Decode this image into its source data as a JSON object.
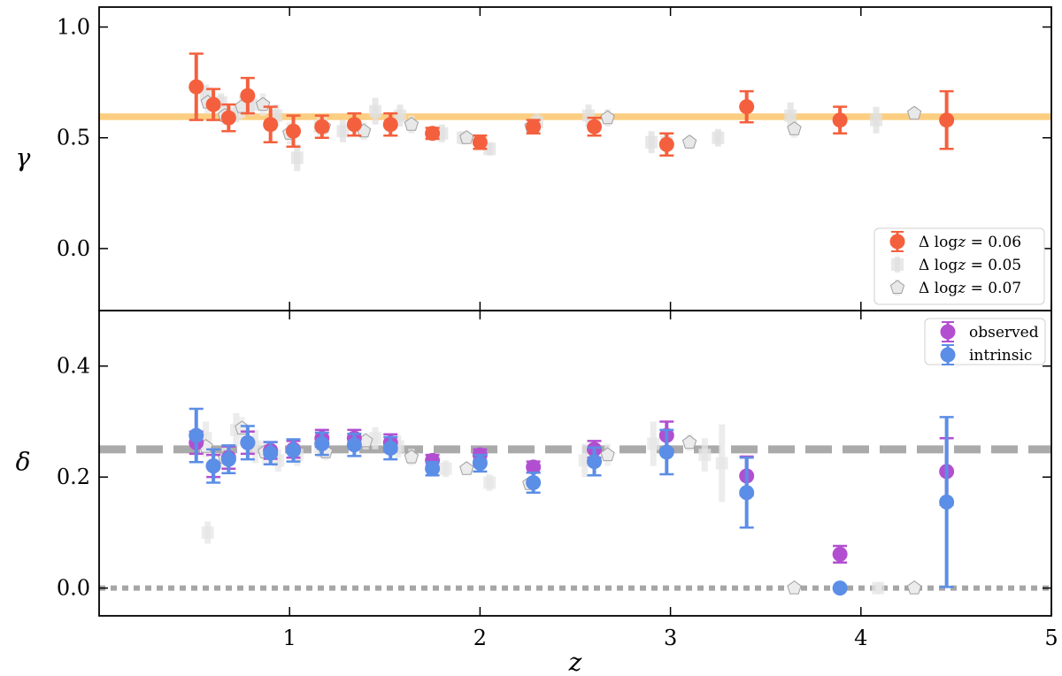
{
  "chart_data": [
    {
      "type": "scatter",
      "ylabel": "γ",
      "xlabel": "",
      "xlim": [
        0,
        5
      ],
      "ylim": [
        -0.28,
        1.09
      ],
      "x_ticks": [
        1,
        2,
        3,
        4,
        5
      ],
      "x_tick_labels": [
        "",
        "",
        "",
        "",
        ""
      ],
      "y_ticks": [
        0.0,
        0.5,
        1.0
      ],
      "y_tick_labels": [
        "0.0",
        "0.5",
        "1.0"
      ],
      "legend_position": "bottom-right",
      "reference_band": {
        "y_low": 0.58,
        "y_high": 0.61,
        "color": "#fcc56b"
      },
      "series": [
        {
          "name_parts": [
            "Δ log",
            "z",
            " = 0.06"
          ],
          "marker": "circle",
          "color": "#f4603e",
          "points": [
            {
              "x": 0.51,
              "y": 0.73,
              "err": 0.15
            },
            {
              "x": 0.6,
              "y": 0.65,
              "err": 0.07
            },
            {
              "x": 0.68,
              "y": 0.59,
              "err": 0.06
            },
            {
              "x": 0.78,
              "y": 0.69,
              "err": 0.08
            },
            {
              "x": 0.9,
              "y": 0.56,
              "err": 0.08
            },
            {
              "x": 1.02,
              "y": 0.53,
              "err": 0.07
            },
            {
              "x": 1.17,
              "y": 0.55,
              "err": 0.05
            },
            {
              "x": 1.34,
              "y": 0.56,
              "err": 0.05
            },
            {
              "x": 1.53,
              "y": 0.56,
              "err": 0.05
            },
            {
              "x": 1.75,
              "y": 0.52,
              "err": 0.025
            },
            {
              "x": 2.0,
              "y": 0.48,
              "err": 0.03
            },
            {
              "x": 2.28,
              "y": 0.55,
              "err": 0.03
            },
            {
              "x": 2.6,
              "y": 0.55,
              "err": 0.04
            },
            {
              "x": 2.98,
              "y": 0.47,
              "err": 0.05
            },
            {
              "x": 3.4,
              "y": 0.64,
              "err": 0.07
            },
            {
              "x": 3.89,
              "y": 0.58,
              "err": 0.06
            },
            {
              "x": 4.45,
              "y": 0.58,
              "err": 0.13
            }
          ]
        },
        {
          "name_parts": [
            "Δ log",
            "z",
            " = 0.05"
          ],
          "marker": "square",
          "color": "#e0e0e0",
          "points": [
            {
              "x": 0.56,
              "y": 0.7,
              "err": 0.04
            },
            {
              "x": 0.64,
              "y": 0.66,
              "err": 0.04
            },
            {
              "x": 0.72,
              "y": 0.61,
              "err": 0.04
            },
            {
              "x": 0.8,
              "y": 0.65,
              "err": 0.05
            },
            {
              "x": 0.93,
              "y": 0.6,
              "err": 0.05
            },
            {
              "x": 1.04,
              "y": 0.41,
              "err": 0.06
            },
            {
              "x": 1.16,
              "y": 0.55,
              "err": 0.04
            },
            {
              "x": 1.28,
              "y": 0.53,
              "err": 0.05
            },
            {
              "x": 1.45,
              "y": 0.62,
              "err": 0.06
            },
            {
              "x": 1.58,
              "y": 0.6,
              "err": 0.05
            },
            {
              "x": 1.8,
              "y": 0.52,
              "err": 0.04
            },
            {
              "x": 1.91,
              "y": 0.5,
              "err": 0.03
            },
            {
              "x": 2.05,
              "y": 0.45,
              "err": 0.03
            },
            {
              "x": 2.3,
              "y": 0.57,
              "err": 0.04
            },
            {
              "x": 2.57,
              "y": 0.6,
              "err": 0.05
            },
            {
              "x": 2.9,
              "y": 0.48,
              "err": 0.05
            },
            {
              "x": 2.98,
              "y": 0.48,
              "err": 0.04
            },
            {
              "x": 3.25,
              "y": 0.5,
              "err": 0.04
            },
            {
              "x": 3.63,
              "y": 0.6,
              "err": 0.06
            },
            {
              "x": 4.08,
              "y": 0.58,
              "err": 0.06
            }
          ]
        },
        {
          "name_parts": [
            "Δ log",
            "z",
            " = 0.07"
          ],
          "marker": "pentagon",
          "color": "#e8e8e8",
          "points": [
            {
              "x": 0.57,
              "y": 0.66,
              "err": 0.05
            },
            {
              "x": 0.66,
              "y": 0.6,
              "err": 0.04
            },
            {
              "x": 0.75,
              "y": 0.64,
              "err": 0.05
            },
            {
              "x": 0.86,
              "y": 0.65,
              "err": 0.05
            },
            {
              "x": 1.0,
              "y": 0.52,
              "err": 0.05
            },
            {
              "x": 1.18,
              "y": 0.55,
              "err": 0.04
            },
            {
              "x": 1.39,
              "y": 0.53,
              "err": 0.04
            },
            {
              "x": 1.64,
              "y": 0.56,
              "err": 0.04
            },
            {
              "x": 1.93,
              "y": 0.5,
              "err": 0.02
            },
            {
              "x": 2.27,
              "y": 0.55,
              "err": 0.03
            },
            {
              "x": 2.67,
              "y": 0.59,
              "err": 0.04
            },
            {
              "x": 3.1,
              "y": 0.48,
              "err": 0.03
            },
            {
              "x": 3.65,
              "y": 0.54,
              "err": 0.04
            },
            {
              "x": 4.28,
              "y": 0.61,
              "err": 0.03
            }
          ]
        }
      ]
    },
    {
      "type": "scatter",
      "ylabel": "δ",
      "xlabel": "z",
      "xlim": [
        0,
        5
      ],
      "ylim": [
        -0.05,
        0.5
      ],
      "x_ticks": [
        1,
        2,
        3,
        4,
        5
      ],
      "x_tick_labels": [
        "1",
        "2",
        "3",
        "4",
        "5"
      ],
      "y_ticks": [
        0.0,
        0.2,
        0.4
      ],
      "y_tick_labels": [
        "0.0",
        "0.2",
        "0.4"
      ],
      "legend_position": "top-right",
      "reference_lines": [
        {
          "y": 0.25,
          "style": "dashed",
          "color": "#aaaaaa"
        },
        {
          "y": 0.0,
          "style": "dotted",
          "color": "#a6a6a6"
        }
      ],
      "series": [
        {
          "name": "observed",
          "marker": "circle",
          "color": "#b24fd0",
          "points": [
            {
              "x": 0.51,
              "y": 0.262,
              "err": 0.02
            },
            {
              "x": 0.6,
              "y": 0.22,
              "err": 0.02
            },
            {
              "x": 0.68,
              "y": 0.235,
              "err": 0.02
            },
            {
              "x": 0.78,
              "y": 0.262,
              "err": 0.02
            },
            {
              "x": 0.9,
              "y": 0.248,
              "err": 0.015
            },
            {
              "x": 1.02,
              "y": 0.25,
              "err": 0.015
            },
            {
              "x": 1.17,
              "y": 0.27,
              "err": 0.015
            },
            {
              "x": 1.34,
              "y": 0.27,
              "err": 0.015
            },
            {
              "x": 1.53,
              "y": 0.262,
              "err": 0.015
            },
            {
              "x": 1.75,
              "y": 0.23,
              "err": 0.01
            },
            {
              "x": 2.0,
              "y": 0.24,
              "err": 0.01
            },
            {
              "x": 2.28,
              "y": 0.218,
              "err": 0.01
            },
            {
              "x": 2.6,
              "y": 0.25,
              "err": 0.015
            },
            {
              "x": 2.98,
              "y": 0.275,
              "err": 0.025
            },
            {
              "x": 3.4,
              "y": 0.202,
              "err": 0.035
            },
            {
              "x": 3.89,
              "y": 0.061,
              "err": 0.015
            },
            {
              "x": 4.45,
              "y": 0.21,
              "err": 0.06
            }
          ]
        },
        {
          "name": "intrinsic",
          "marker": "circle",
          "color": "#5b8ee6",
          "points": [
            {
              "x": 0.51,
              "y": 0.275,
              "err": 0.048
            },
            {
              "x": 0.6,
              "y": 0.22,
              "err": 0.03
            },
            {
              "x": 0.68,
              "y": 0.232,
              "err": 0.025
            },
            {
              "x": 0.78,
              "y": 0.262,
              "err": 0.03
            },
            {
              "x": 0.9,
              "y": 0.243,
              "err": 0.02
            },
            {
              "x": 1.02,
              "y": 0.248,
              "err": 0.02
            },
            {
              "x": 1.17,
              "y": 0.26,
              "err": 0.02
            },
            {
              "x": 1.34,
              "y": 0.258,
              "err": 0.02
            },
            {
              "x": 1.53,
              "y": 0.252,
              "err": 0.02
            },
            {
              "x": 1.75,
              "y": 0.215,
              "err": 0.012
            },
            {
              "x": 2.0,
              "y": 0.225,
              "err": 0.015
            },
            {
              "x": 2.28,
              "y": 0.19,
              "err": 0.018
            },
            {
              "x": 2.6,
              "y": 0.228,
              "err": 0.025
            },
            {
              "x": 2.98,
              "y": 0.245,
              "err": 0.04
            },
            {
              "x": 3.4,
              "y": 0.172,
              "err": 0.063
            },
            {
              "x": 3.89,
              "y": 0.0,
              "err": 0.0
            },
            {
              "x": 4.45,
              "y": 0.155,
              "err": 0.153
            }
          ]
        },
        {
          "name": "",
          "marker": "square",
          "color": "#e6e6e6",
          "points": [
            {
              "x": 0.56,
              "y": 0.27,
              "err": 0.03
            },
            {
              "x": 0.57,
              "y": 0.1,
              "err": 0.02
            },
            {
              "x": 0.72,
              "y": 0.285,
              "err": 0.03
            },
            {
              "x": 0.82,
              "y": 0.255,
              "err": 0.03
            },
            {
              "x": 0.94,
              "y": 0.23,
              "err": 0.02
            },
            {
              "x": 1.04,
              "y": 0.24,
              "err": 0.02
            },
            {
              "x": 1.16,
              "y": 0.255,
              "err": 0.02
            },
            {
              "x": 1.45,
              "y": 0.27,
              "err": 0.02
            },
            {
              "x": 1.57,
              "y": 0.255,
              "err": 0.02
            },
            {
              "x": 1.82,
              "y": 0.215,
              "err": 0.015
            },
            {
              "x": 2.05,
              "y": 0.19,
              "err": 0.015
            },
            {
              "x": 2.55,
              "y": 0.23,
              "err": 0.03
            },
            {
              "x": 2.91,
              "y": 0.26,
              "err": 0.04
            },
            {
              "x": 3.18,
              "y": 0.24,
              "err": 0.03
            },
            {
              "x": 3.27,
              "y": 0.225,
              "err": 0.07
            },
            {
              "x": 4.09,
              "y": 0.0,
              "err": 0.01
            }
          ]
        },
        {
          "name": "",
          "marker": "pentagon",
          "color": "#ececec",
          "points": [
            {
              "x": 0.56,
              "y": 0.255,
              "err": 0.02
            },
            {
              "x": 0.66,
              "y": 0.235,
              "err": 0.02
            },
            {
              "x": 0.75,
              "y": 0.288,
              "err": 0.02
            },
            {
              "x": 0.87,
              "y": 0.245,
              "err": 0.02
            },
            {
              "x": 1.19,
              "y": 0.245,
              "err": 0.015
            },
            {
              "x": 1.4,
              "y": 0.265,
              "err": 0.015
            },
            {
              "x": 1.64,
              "y": 0.236,
              "err": 0.015
            },
            {
              "x": 1.93,
              "y": 0.215,
              "err": 0.01
            },
            {
              "x": 2.26,
              "y": 0.188,
              "err": 0.01
            },
            {
              "x": 2.67,
              "y": 0.24,
              "err": 0.02
            },
            {
              "x": 3.1,
              "y": 0.262,
              "err": 0.015
            },
            {
              "x": 3.65,
              "y": 0.0,
              "err": 0.0
            },
            {
              "x": 4.28,
              "y": 0.0,
              "err": 0.0
            }
          ]
        }
      ]
    }
  ]
}
